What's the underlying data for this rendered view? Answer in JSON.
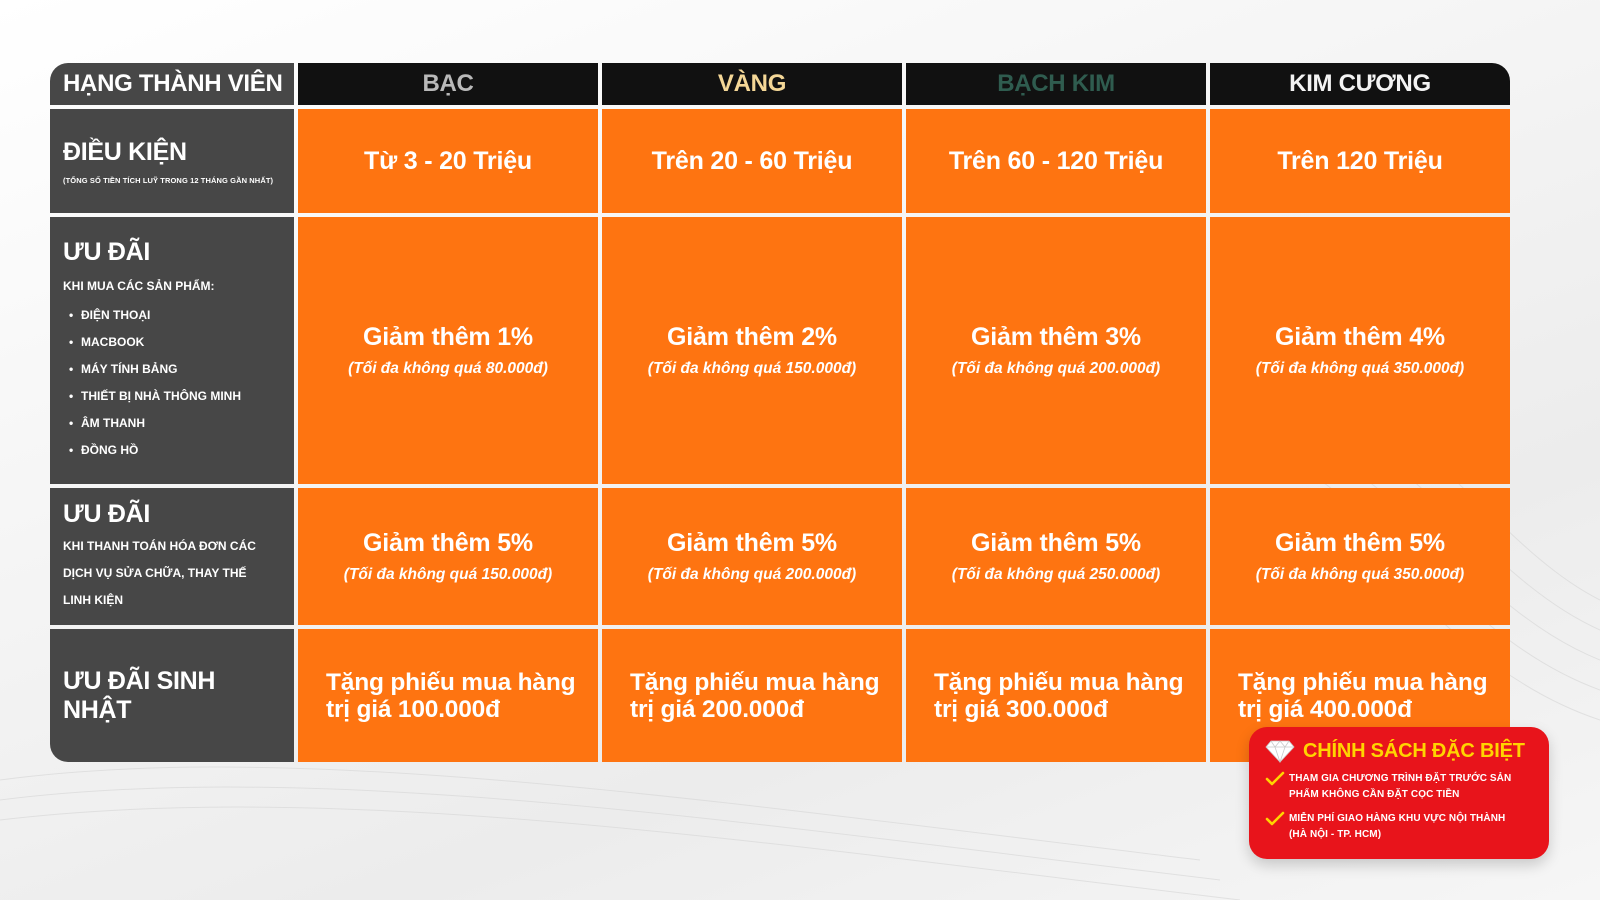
{
  "colors": {
    "orange": "#fe7411",
    "dark_gray": "#474747",
    "header_black": "#111111",
    "silver": "#b9b9b9",
    "gold": "#f4d797",
    "platinum": "#2f5c4f",
    "diamond": "#f3f3f3",
    "special_red": "#e8141b",
    "special_yellow": "#ffd400"
  },
  "header": {
    "corner_label": "HẠNG THÀNH VIÊN",
    "tiers": [
      "BẠC",
      "VÀNG",
      "BẠCH KIM",
      "KIM CƯƠNG"
    ]
  },
  "conditions": {
    "title": "ĐIỀU KIỆN",
    "subtitle": "(TỔNG SỐ TIỀN TÍCH LUỸ TRONG 12 THÁNG GẦN NHẤT)",
    "values": [
      "Từ 3 - 20 Triệu",
      "Trên 20 - 60 Triệu",
      "Trên 60 - 120 Triệu",
      "Trên 120 Triệu"
    ]
  },
  "product_offer": {
    "title": "ƯU ĐÃI",
    "subtitle": "KHI MUA CÁC SẢN PHẨM:",
    "bullet": "•",
    "items": [
      "ĐIỆN THOẠI",
      "MACBOOK",
      "MÁY TÍNH BẢNG",
      "THIẾT BỊ NHÀ THÔNG MINH",
      "ÂM THANH",
      "ĐỒNG HỒ"
    ],
    "values": [
      {
        "main": "Giảm thêm 1%",
        "note": "(Tối đa không quá 80.000đ)"
      },
      {
        "main": "Giảm thêm 2%",
        "note": "(Tối đa không quá 150.000đ)"
      },
      {
        "main": "Giảm thêm 3%",
        "note": "(Tối đa không quá 200.000đ)"
      },
      {
        "main": "Giảm thêm 4%",
        "note": "(Tối đa không quá 350.000đ)"
      }
    ]
  },
  "service_offer": {
    "title": "ƯU ĐÃI",
    "lines": [
      "KHI THANH TOÁN HÓA ĐƠN CÁC",
      "DỊCH VỤ SỬA CHỮA, THAY THẾ",
      "LINH KIỆN"
    ],
    "values": [
      {
        "main": "Giảm thêm 5%",
        "note": "(Tối đa không quá 150.000đ)"
      },
      {
        "main": "Giảm thêm 5%",
        "note": "(Tối đa không quá 200.000đ)"
      },
      {
        "main": "Giảm thêm 5%",
        "note": "(Tối đa không quá 250.000đ)"
      },
      {
        "main": "Giảm thêm 5%",
        "note": "(Tối đa không quá 350.000đ)"
      }
    ]
  },
  "birthday": {
    "title": "ƯU ĐÃI SINH NHẬT",
    "values": [
      {
        "line1": "Tặng phiếu mua hàng",
        "line2": "trị giá 100.000đ"
      },
      {
        "line1": "Tặng phiếu mua hàng",
        "line2": "trị giá 200.000đ"
      },
      {
        "line1": "Tặng phiếu mua hàng",
        "line2": "trị giá 300.000đ"
      },
      {
        "line1": "Tặng phiếu mua hàng",
        "line2": "trị giá 400.000đ"
      }
    ]
  },
  "special_policy": {
    "icon": "diamond-icon",
    "title": "CHÍNH SÁCH ĐẶC BIỆT",
    "items": [
      {
        "icon": "check-icon",
        "line1": "THAM GIA CHƯƠNG TRÌNH ĐẶT TRƯỚC SẢN",
        "line2": "PHẨM KHÔNG CẦN ĐẶT CỌC TIỀN"
      },
      {
        "icon": "check-icon",
        "line1": "MIỄN PHÍ GIAO HÀNG KHU VỰC NỘI THÀNH",
        "line2": "(HÀ NỘI - TP. HCM)"
      }
    ]
  }
}
